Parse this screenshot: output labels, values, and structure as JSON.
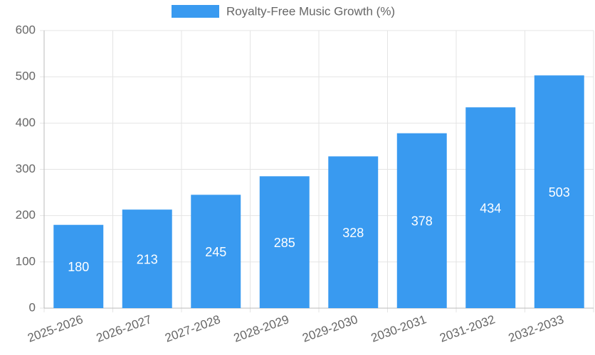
{
  "chart_data": {
    "type": "bar",
    "categories": [
      "2025-2026",
      "2026-2027",
      "2027-2028",
      "2028-2029",
      "2029-2030",
      "2030-2031",
      "2031-2032",
      "2032-2033"
    ],
    "series": [
      {
        "name": "Royalty-Free Music Growth (%)",
        "color": "#399af0",
        "values": [
          180,
          213,
          245,
          285,
          328,
          378,
          434,
          503
        ]
      }
    ],
    "ylim": [
      0,
      600
    ],
    "yticks": [
      0,
      100,
      200,
      300,
      400,
      500,
      600
    ],
    "grid": true,
    "legend": "top"
  }
}
